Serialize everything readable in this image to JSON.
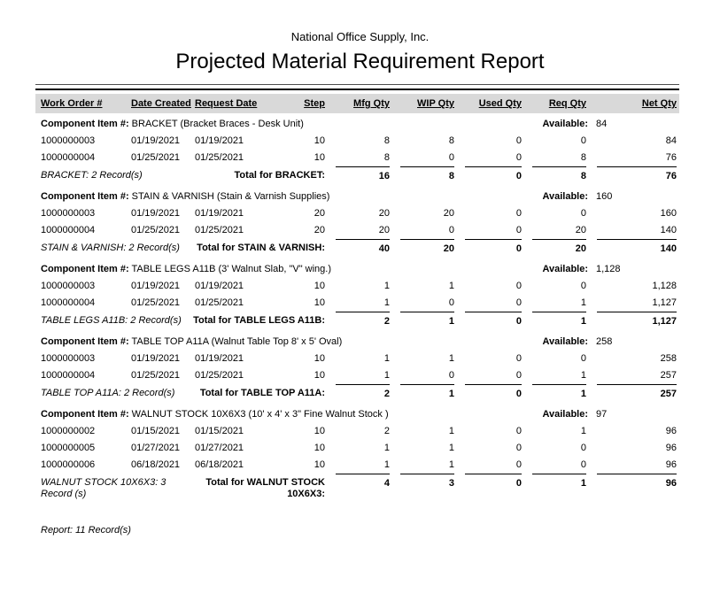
{
  "report": {
    "company": "National Office Supply, Inc.",
    "title": "Projected Material Requirement Report",
    "columns": [
      "Work Order #",
      "Date Created",
      "Request Date",
      "Step",
      "Mfg Qty",
      "WIP Qty",
      "Used Qty",
      "Req Qty",
      "Net Qty"
    ],
    "component_label": "Component Item #:",
    "available_label": "Available:",
    "groups": [
      {
        "name": "BRACKET",
        "description": "(Bracket Braces - Desk Unit)",
        "available": "84",
        "rows": [
          [
            "1000000003",
            "01/19/2021",
            "01/19/2021",
            "10",
            "8",
            "8",
            "0",
            "0",
            "84"
          ],
          [
            "1000000004",
            "01/25/2021",
            "01/25/2021",
            "10",
            "8",
            "0",
            "0",
            "8",
            "76"
          ]
        ],
        "count_label": "BRACKET: 2 Record(s)",
        "total_label": "Total for BRACKET:",
        "totals": [
          "16",
          "8",
          "0",
          "8",
          "76"
        ]
      },
      {
        "name": "STAIN & VARNISH",
        "description": "(Stain & Varnish Supplies)",
        "available": "160",
        "rows": [
          [
            "1000000003",
            "01/19/2021",
            "01/19/2021",
            "20",
            "20",
            "20",
            "0",
            "0",
            "160"
          ],
          [
            "1000000004",
            "01/25/2021",
            "01/25/2021",
            "20",
            "20",
            "0",
            "0",
            "20",
            "140"
          ]
        ],
        "count_label": "STAIN & VARNISH: 2 Record(s)",
        "total_label": "Total for STAIN & VARNISH:",
        "totals": [
          "40",
          "20",
          "0",
          "20",
          "140"
        ]
      },
      {
        "name": "TABLE LEGS A11B",
        "description": "(3' Walnut Slab, \"V\" wing.)",
        "available": "1,128",
        "rows": [
          [
            "1000000003",
            "01/19/2021",
            "01/19/2021",
            "10",
            "1",
            "1",
            "0",
            "0",
            "1,128"
          ],
          [
            "1000000004",
            "01/25/2021",
            "01/25/2021",
            "10",
            "1",
            "0",
            "0",
            "1",
            "1,127"
          ]
        ],
        "count_label": "TABLE LEGS A11B: 2 Record(s)",
        "total_label": "Total for TABLE LEGS A11B:",
        "totals": [
          "2",
          "1",
          "0",
          "1",
          "1,127"
        ]
      },
      {
        "name": "TABLE TOP A11A",
        "description": "(Walnut Table Top 8' x 5' Oval)",
        "available": "258",
        "rows": [
          [
            "1000000003",
            "01/19/2021",
            "01/19/2021",
            "10",
            "1",
            "1",
            "0",
            "0",
            "258"
          ],
          [
            "1000000004",
            "01/25/2021",
            "01/25/2021",
            "10",
            "1",
            "0",
            "0",
            "1",
            "257"
          ]
        ],
        "count_label": "TABLE TOP A11A: 2 Record(s)",
        "total_label": "Total for TABLE TOP A11A:",
        "totals": [
          "2",
          "1",
          "0",
          "1",
          "257"
        ]
      },
      {
        "name": "WALNUT STOCK 10X6X3",
        "description": "(10' x 4' x 3\" Fine Walnut Stock )",
        "available": "97",
        "rows": [
          [
            "1000000002",
            "01/15/2021",
            "01/15/2021",
            "10",
            "2",
            "1",
            "0",
            "1",
            "96"
          ],
          [
            "1000000005",
            "01/27/2021",
            "01/27/2021",
            "10",
            "1",
            "1",
            "0",
            "0",
            "96"
          ],
          [
            "1000000006",
            "06/18/2021",
            "06/18/2021",
            "10",
            "1",
            "1",
            "0",
            "0",
            "96"
          ]
        ],
        "count_label": "WALNUT STOCK 10X6X3: 3 Record (s)",
        "total_label": "Total for WALNUT STOCK 10X6X3:",
        "totals": [
          "4",
          "3",
          "0",
          "1",
          "96"
        ]
      }
    ],
    "footer": "Report: 11 Record(s)"
  }
}
